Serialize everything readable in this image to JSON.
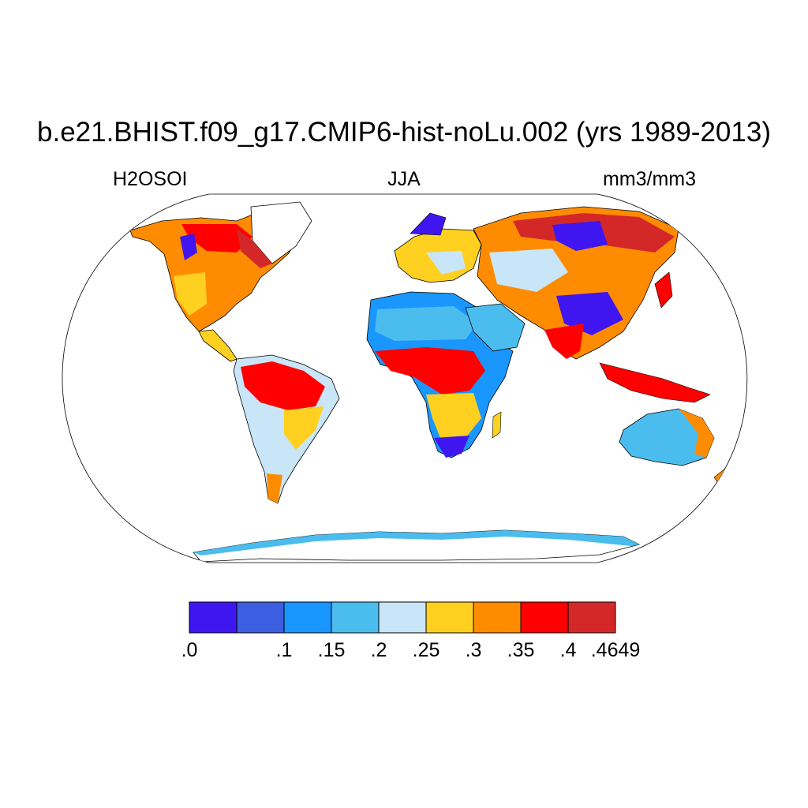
{
  "title": "b.e21.BHIST.f09_g17.CMIP6-hist-noLu.002 (yrs 1989-2013)",
  "subtitle": {
    "left": "H2OSOI",
    "center": "JJA",
    "right": "mm3/mm3"
  },
  "colorbar": {
    "colors": [
      "#4016f0",
      "#3c5ee0",
      "#1a96ff",
      "#4bbcee",
      "#c8e6f8",
      "#ffd020",
      "#ff8c00",
      "#ff0000",
      "#d42828"
    ],
    "labels": [
      ".0",
      ".1",
      ".15",
      ".2",
      ".25",
      ".3",
      ".35",
      ".4",
      ".4649"
    ],
    "label_boundaries": [
      0,
      2,
      3,
      4,
      5,
      6,
      7,
      8,
      9
    ]
  },
  "colors": {
    "ocean": "#ffffff",
    "coast": "#000000",
    "frame": "#000000"
  }
}
